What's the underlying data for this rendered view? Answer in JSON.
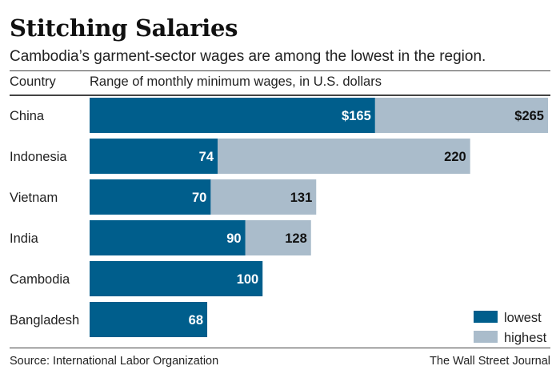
{
  "title": "Stitching Salaries",
  "subtitle": "Cambodia’s garment-sector wages are among the lowest in the region.",
  "column_headers": {
    "country": "Country",
    "range": "Range of monthly minimum wages, in U.S. dollars"
  },
  "source": "Source: International Labor Organization",
  "credit": "The Wall Street Journal",
  "colors": {
    "lowest": "#005e8c",
    "highest": "#aabccb"
  },
  "chart_data": {
    "type": "bar",
    "orientation": "horizontal",
    "stacked_range": true,
    "title": "Stitching Salaries",
    "subtitle": "Cambodia’s garment-sector wages are among the lowest in the region.",
    "xlabel": "Range of monthly minimum wages, in U.S. dollars",
    "ylabel": "Country",
    "xlim": [
      0,
      265
    ],
    "grid": false,
    "legend_position": "bottom-right",
    "categories": [
      "China",
      "Indonesia",
      "Vietnam",
      "India",
      "Cambodia",
      "Bangladesh"
    ],
    "series": [
      {
        "name": "lowest",
        "values": [
          165,
          74,
          70,
          90,
          100,
          68
        ],
        "labels": [
          "$165",
          "74",
          "70",
          "90",
          "100",
          "68"
        ]
      },
      {
        "name": "highest",
        "values": [
          265,
          220,
          131,
          128,
          null,
          null
        ],
        "labels": [
          "$265",
          "220",
          "131",
          "128",
          "",
          ""
        ]
      }
    ]
  }
}
